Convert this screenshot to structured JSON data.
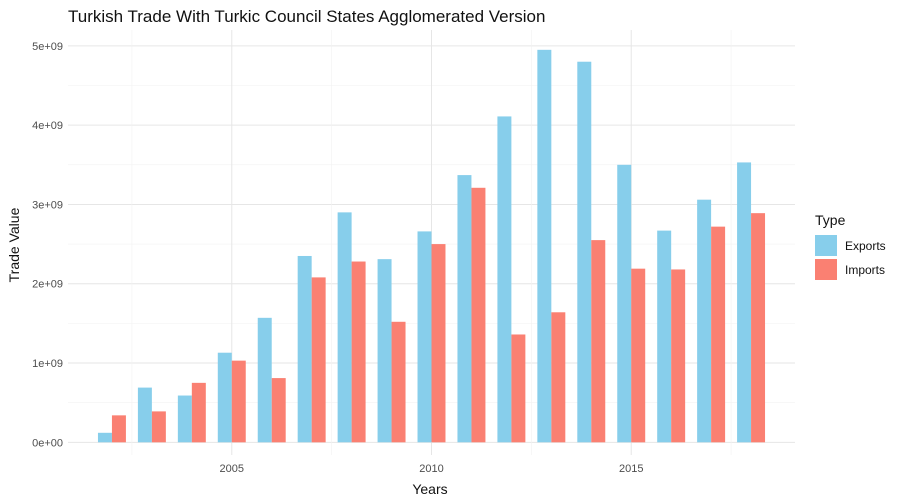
{
  "chart_data": {
    "type": "bar",
    "title": "Turkish Trade With Turkic Council States Agglomerated Version",
    "xlabel": "Years",
    "ylabel": "Trade Value",
    "x": [
      2002,
      2003,
      2004,
      2005,
      2006,
      2007,
      2008,
      2009,
      2010,
      2011,
      2012,
      2013,
      2014,
      2015,
      2016,
      2017,
      2018
    ],
    "xticks": [
      2005,
      2010,
      2015
    ],
    "xtick_labels": [
      "2005",
      "2010",
      "2015"
    ],
    "xlim": [
      2000.9,
      2019.1
    ],
    "yticks": [
      0,
      1000000000,
      2000000000,
      3000000000,
      4000000000,
      5000000000
    ],
    "ytick_labels": [
      "0e+00",
      "1e+09",
      "2e+09",
      "3e+09",
      "4e+09",
      "5e+09"
    ],
    "ylim": [
      -160000000,
      5200000000
    ],
    "grid": true,
    "legend": {
      "title": "Type",
      "position": "right"
    },
    "series": [
      {
        "name": "Exports",
        "color": "#87CEEB",
        "values": [
          120000000,
          690000000,
          590000000,
          1130000000,
          1570000000,
          2350000000,
          2900000000,
          2310000000,
          2660000000,
          3370000000,
          4110000000,
          4950000000,
          4800000000,
          3500000000,
          2670000000,
          3060000000,
          3530000000
        ]
      },
      {
        "name": "Imports",
        "color": "#FA8072",
        "values": [
          340000000,
          390000000,
          750000000,
          1030000000,
          810000000,
          2080000000,
          2280000000,
          1520000000,
          2500000000,
          3210000000,
          1360000000,
          1640000000,
          2550000000,
          2190000000,
          2180000000,
          2720000000,
          2890000000
        ]
      }
    ]
  }
}
